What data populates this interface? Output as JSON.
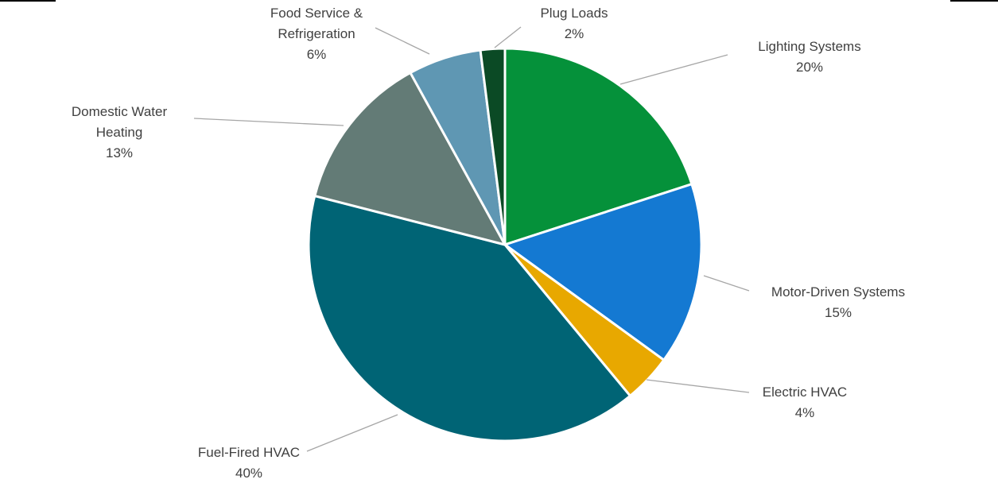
{
  "chart_data": {
    "type": "pie",
    "title": "",
    "start_angle_deg": 0,
    "direction": "clockwise",
    "slices": [
      {
        "label_lines": [
          "Lighting Systems"
        ],
        "value": 20,
        "value_label": "20%",
        "color": "#05913A"
      },
      {
        "label_lines": [
          "Motor-Driven Systems"
        ],
        "value": 15,
        "value_label": "15%",
        "color": "#1479D2"
      },
      {
        "label_lines": [
          "Electric HVAC"
        ],
        "value": 4,
        "value_label": "4%",
        "color": "#E8A800"
      },
      {
        "label_lines": [
          "Fuel-Fired HVAC"
        ],
        "value": 40,
        "value_label": "40%",
        "color": "#006475"
      },
      {
        "label_lines": [
          "Domestic Water",
          "Heating"
        ],
        "value": 13,
        "value_label": "13%",
        "color": "#637B76"
      },
      {
        "label_lines": [
          "Food Service &",
          "Refrigeration"
        ],
        "value": 6,
        "value_label": "6%",
        "color": "#5F97B3"
      },
      {
        "label_lines": [
          "Plug Loads"
        ],
        "value": 2,
        "value_label": "2%",
        "color": "#0B4A25"
      }
    ]
  }
}
